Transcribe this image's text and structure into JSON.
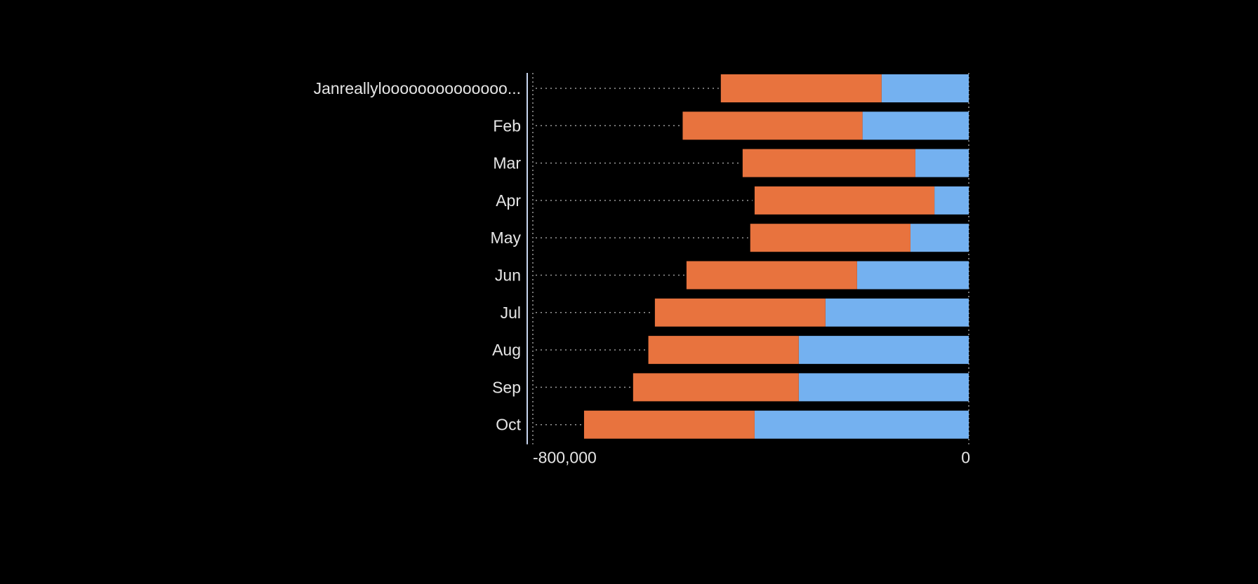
{
  "chart_data": {
    "type": "bar",
    "orientation": "horizontal",
    "stacked": true,
    "categories": [
      "Janreallyloooooooooooooo...",
      "Feb",
      "Mar",
      "Apr",
      "May",
      "Jun",
      "Jul",
      "Aug",
      "Sep",
      "Oct"
    ],
    "series": [
      {
        "color": "#74B1F0",
        "values": [
          -160000,
          -195000,
          -98000,
          -63000,
          -107000,
          -205000,
          -263000,
          -312000,
          -312000,
          -393000
        ]
      },
      {
        "color": "#E8733E",
        "values": [
          -295000,
          -330000,
          -317000,
          -330000,
          -294000,
          -313000,
          -313000,
          -276000,
          -304000,
          -313000
        ]
      }
    ],
    "x_ticks": [
      {
        "value": -800000,
        "label": "-800,000"
      },
      {
        "value": 0,
        "label": "0"
      }
    ],
    "xlim": [
      -800000,
      0
    ],
    "xlabel": "",
    "ylabel": "",
    "title": "",
    "grid": true,
    "legend": "none",
    "colors": {
      "background": "#000000",
      "text": "#E6E6E6",
      "grid": "#9A9A9A"
    }
  }
}
